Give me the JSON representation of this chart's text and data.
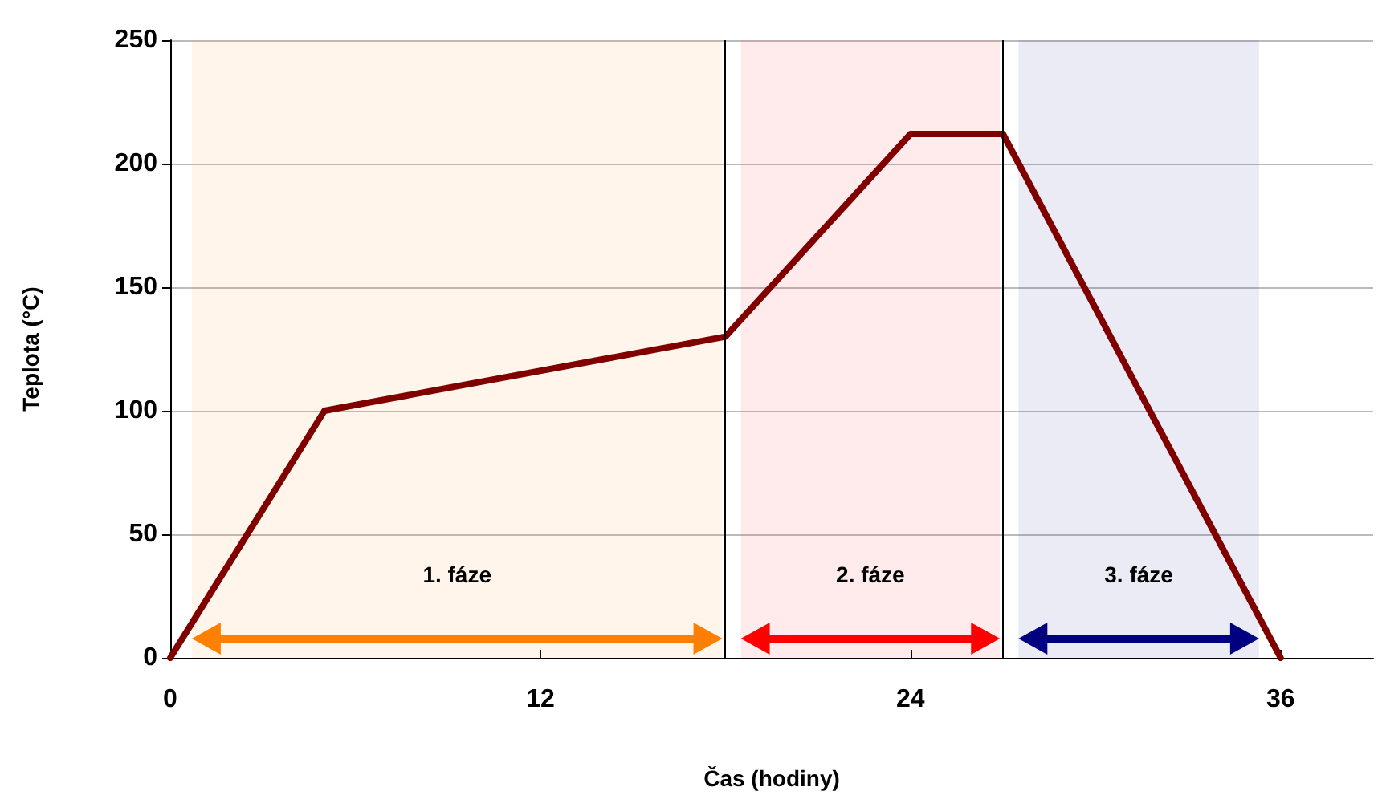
{
  "chart_data": {
    "type": "line",
    "xlabel": "Čas (hodiny)",
    "ylabel": "Teplota (°C)",
    "x": [
      0,
      5,
      18,
      24,
      27,
      36
    ],
    "series": [
      {
        "color": "#800000",
        "values": [
          0,
          100,
          130,
          212,
          212,
          0
        ]
      }
    ],
    "xlim": [
      0,
      39
    ],
    "xticks": [
      0,
      12,
      24,
      36
    ],
    "ylim": [
      0,
      250
    ],
    "yticks": [
      0,
      50,
      100,
      150,
      200,
      250
    ],
    "grid": "y",
    "marker": "none",
    "line_style": "solid",
    "ref_lines": [
      {
        "axis": "x",
        "value": 18,
        "color": "#000000"
      },
      {
        "axis": "x",
        "value": 27,
        "color": "#000000"
      }
    ],
    "bands": [
      {
        "axis": "x",
        "from": 0.7,
        "to": 17.9,
        "label": "1. fáze",
        "color": "#ff7f00"
      },
      {
        "axis": "x",
        "from": 18.5,
        "to": 26.9,
        "label": "2. fáze",
        "color": "#ff0000"
      },
      {
        "axis": "x",
        "from": 27.5,
        "to": 35.3,
        "label": "3. fáze",
        "color": "#000080"
      }
    ]
  }
}
